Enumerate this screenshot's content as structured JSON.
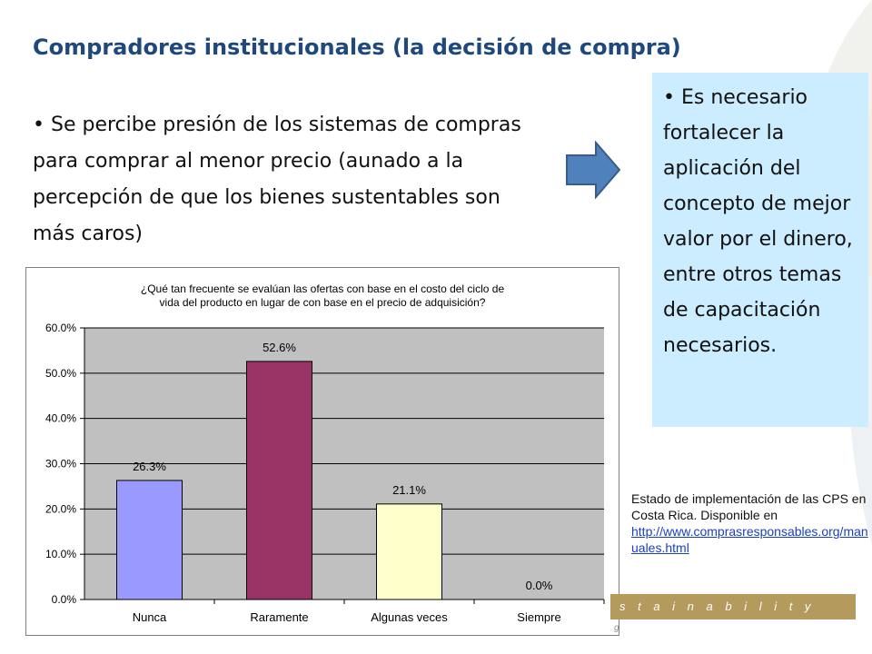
{
  "slide": {
    "title": "Compradores institucionales (la decisión de compra)",
    "left_bullet": "Se percibe presión de los sistemas de compras para comprar al menor precio (aunado a la percepción de que los bienes sustentables son más caros)",
    "right_bullet": "Es necesario fortalecer la aplicación del concepto de mejor valor por el dinero, entre otros temas de capacitación necesarios.",
    "source_text": "Estado de implementación de las CPS en Costa Rica. Disponible en",
    "source_link": "http://www.comprasresponsables.org/manuales.html",
    "brand_band": "s t a i n a b i l i t y",
    "colors": {
      "title": "#1f497d",
      "arrow": "#4f81bd",
      "box": "#ccecff",
      "band": "#b59a5e"
    }
  },
  "chart_data": {
    "type": "bar",
    "title": "¿Qué tan frecuente se evalúan las ofertas con base en el costo del ciclo de vida del producto en lugar de con base en el precio de adquisición?",
    "title_lines": [
      "¿Qué tan frecuente se evalúan las ofertas con base en el costo del ciclo de",
      "vida del producto en lugar de con base en el precio de adquisición?"
    ],
    "categories": [
      "Nunca",
      "Raramente",
      "Algunas veces",
      "Siempre"
    ],
    "values": [
      26.3,
      52.6,
      21.1,
      0.0
    ],
    "data_labels": [
      "26.3%",
      "52.6%",
      "21.1%",
      "0.0%"
    ],
    "bar_colors": [
      "#9999ff",
      "#993366",
      "#ffffcc",
      "#ccffff"
    ],
    "yticks": [
      "0.0%",
      "10.0%",
      "20.0%",
      "30.0%",
      "40.0%",
      "50.0%",
      "60.0%"
    ],
    "ylim": [
      0,
      60
    ],
    "grid": true,
    "plot_background": "#c0c0c0"
  }
}
